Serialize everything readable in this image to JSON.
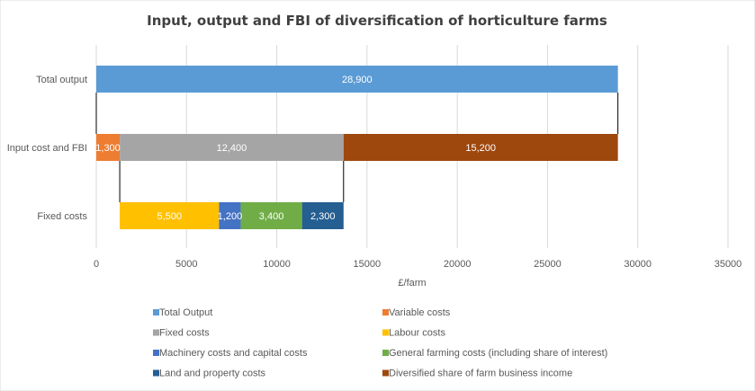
{
  "chart_data": {
    "type": "bar",
    "orientation": "horizontal",
    "stacked": true,
    "title": "Input, output and FBI of diversification of horticulture farms",
    "xlabel": "£/farm",
    "ylabel": "",
    "xlim": [
      0,
      35000
    ],
    "xticks": [
      "0",
      "5000",
      "10000",
      "15000",
      "20000",
      "25000",
      "30000",
      "35000"
    ],
    "categories": [
      "Total output",
      "Input cost and FBI",
      "Fixed costs"
    ],
    "grid": true,
    "legend_position": "bottom",
    "bars": [
      {
        "category": "Total output",
        "segments": [
          {
            "series": "Total Output",
            "start": 0,
            "value": 28900,
            "label": "28,900"
          }
        ]
      },
      {
        "category": "Input cost and FBI",
        "segments": [
          {
            "series": "Variable costs",
            "start": 0,
            "value": 1300,
            "label": "1,300"
          },
          {
            "series": "Fixed costs",
            "start": 1300,
            "value": 12400,
            "label": "12,400"
          },
          {
            "series": "Diversified share of farm business income",
            "start": 13700,
            "value": 15200,
            "label": "15,200"
          }
        ]
      },
      {
        "category": "Fixed costs",
        "segments": [
          {
            "series": "Labour costs",
            "start": 1300,
            "value": 5500,
            "label": "5,500"
          },
          {
            "series": "Machinery costs and capital costs",
            "start": 6800,
            "value": 1200,
            "label": "1,200"
          },
          {
            "series": "General farming costs (including share of interest)",
            "start": 8000,
            "value": 3400,
            "label": "3,400"
          },
          {
            "series": "Land and property costs",
            "start": 11400,
            "value": 2300,
            "label": "2,300"
          }
        ]
      }
    ],
    "connectors": [
      {
        "value": 0
      },
      {
        "value": 28900
      },
      {
        "value": 1300
      },
      {
        "value": 13700
      }
    ],
    "series": [
      {
        "name": "Total Output",
        "color": "#5B9BD5"
      },
      {
        "name": "Variable costs",
        "color": "#ED7D31"
      },
      {
        "name": "Fixed costs",
        "color": "#A5A5A5"
      },
      {
        "name": "Labour costs",
        "color": "#FFC000"
      },
      {
        "name": "Machinery costs and capital costs",
        "color": "#4472C4"
      },
      {
        "name": "General farming costs (including share of interest)",
        "color": "#70AD47"
      },
      {
        "name": "Land and property costs",
        "color": "#255E91"
      },
      {
        "name": "Diversified share of farm business income",
        "color": "#9E480E"
      }
    ]
  }
}
